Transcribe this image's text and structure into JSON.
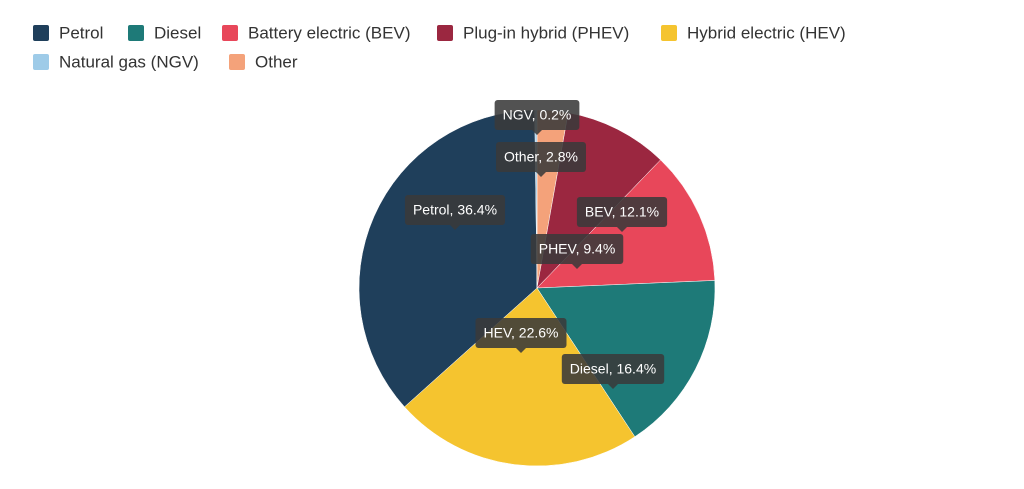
{
  "chart_data": {
    "type": "pie",
    "categories": [
      "Petrol",
      "Diesel",
      "Battery electric (BEV)",
      "Plug-in hybrid (PHEV)",
      "Hybrid electric (HEV)",
      "Natural gas (NGV)",
      "Other"
    ],
    "values": [
      36.4,
      16.4,
      12.1,
      9.4,
      22.6,
      0.2,
      2.8
    ],
    "value_labels": [
      "Petrol, 36.4%",
      "Diesel, 16.4%",
      "BEV, 12.1%",
      "PHEV, 9.4%",
      "HEV, 22.6%",
      "NGV, 0.2%",
      "Other, 2.8%"
    ],
    "colors": [
      "#1f3f5b",
      "#1e7a78",
      "#e8475a",
      "#9b2740",
      "#f5c42f",
      "#9ecbe8",
      "#f4a27a"
    ]
  }
}
